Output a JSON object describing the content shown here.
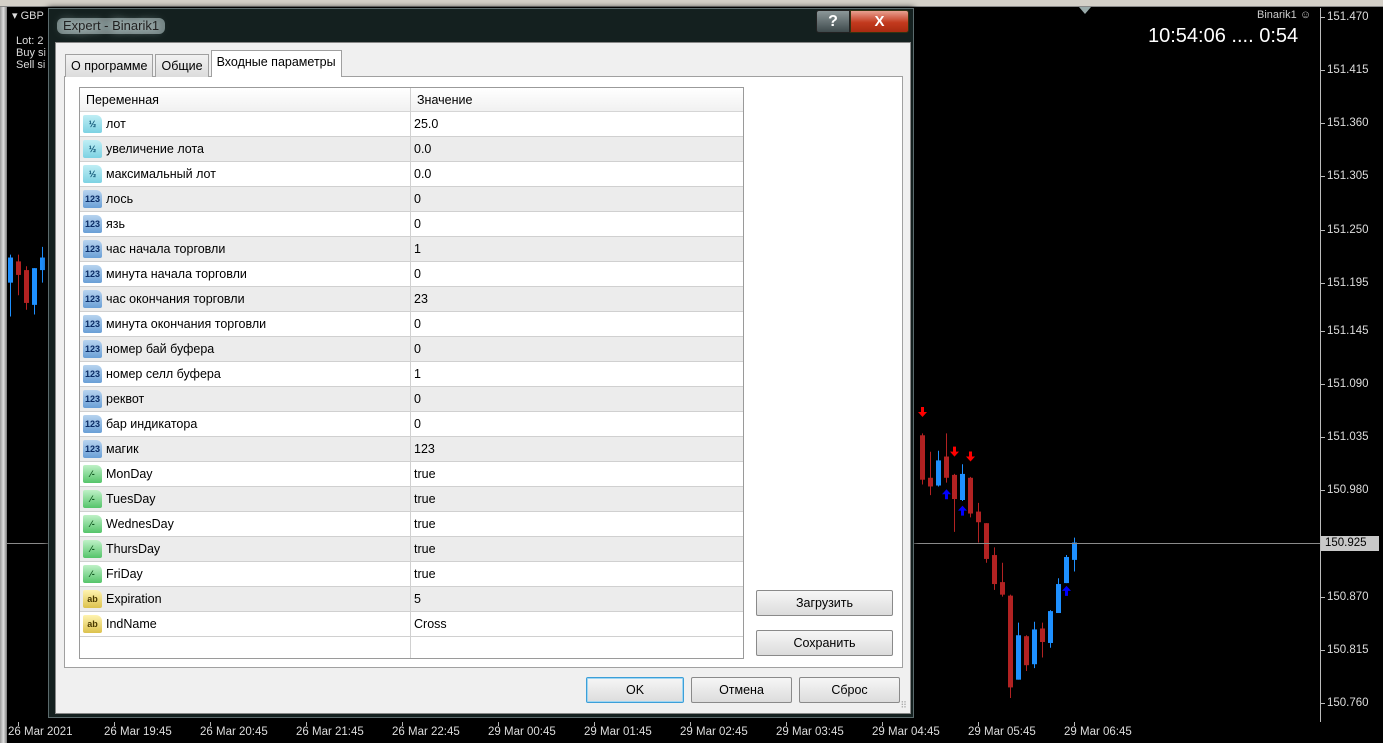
{
  "chart": {
    "symbol": "GBP",
    "info_lines": [
      "Lot: 2",
      "Buy si",
      "Sell si"
    ],
    "clock": "10:54:06 ....  0:54",
    "expert_name": "Binarik1",
    "expert_icon": "smiley-icon",
    "current_price": "150.925",
    "price_labels": [
      "151.470",
      "151.415",
      "151.360",
      "151.305",
      "151.250",
      "151.195",
      "151.145",
      "151.090",
      "151.035",
      "150.980",
      "150.925",
      "150.870",
      "150.815",
      "150.760"
    ],
    "time_labels": [
      "26 Mar 2021",
      "26 Mar 19:45",
      "26 Mar 20:45",
      "26 Mar 21:45",
      "26 Mar 22:45",
      "29 Mar 00:45",
      "29 Mar 01:45",
      "29 Mar 02:45",
      "29 Mar 03:45",
      "29 Mar 04:45",
      "29 Mar 05:45",
      "29 Mar 06:45"
    ],
    "colors": {
      "bull": "#1e90ff",
      "bear": "#b22222",
      "buy_arrow": "#0000ff",
      "sell_arrow": "#ff0000"
    },
    "candles": [
      {
        "bar": 0,
        "o": 151.195,
        "h": 151.224,
        "l": 151.16,
        "c": 151.221
      },
      {
        "bar": 1,
        "o": 151.217,
        "h": 151.224,
        "l": 151.182,
        "c": 151.203
      },
      {
        "bar": 2,
        "o": 151.208,
        "h": 151.212,
        "l": 151.167,
        "c": 151.174
      },
      {
        "bar": 3,
        "o": 151.172,
        "h": 151.21,
        "l": 151.162,
        "c": 151.21
      },
      {
        "bar": 4,
        "o": 151.208,
        "h": 151.232,
        "l": 151.195,
        "c": 151.221
      },
      {
        "bar": 5,
        "o": 151.212,
        "h": 151.253,
        "l": 151.19,
        "c": 151.25
      },
      {
        "bar": 114,
        "o": 151.037,
        "h": 151.039,
        "l": 150.986,
        "c": 150.991
      },
      {
        "bar": 115,
        "o": 150.993,
        "h": 151.02,
        "l": 150.975,
        "c": 150.984
      },
      {
        "bar": 116,
        "o": 150.985,
        "h": 151.021,
        "l": 150.984,
        "c": 151.011
      },
      {
        "bar": 117,
        "o": 151.015,
        "h": 151.039,
        "l": 150.988,
        "c": 150.993
      },
      {
        "bar": 118,
        "o": 150.996,
        "h": 150.997,
        "l": 150.937,
        "c": 150.971
      },
      {
        "bar": 119,
        "o": 150.97,
        "h": 151.007,
        "l": 150.969,
        "c": 150.997
      },
      {
        "bar": 120,
        "o": 150.993,
        "h": 150.994,
        "l": 150.952,
        "c": 150.956
      },
      {
        "bar": 121,
        "o": 150.958,
        "h": 150.967,
        "l": 150.926,
        "c": 150.947
      },
      {
        "bar": 122,
        "o": 150.946,
        "h": 150.946,
        "l": 150.905,
        "c": 150.909
      },
      {
        "bar": 123,
        "o": 150.913,
        "h": 150.921,
        "l": 150.877,
        "c": 150.883
      },
      {
        "bar": 124,
        "o": 150.885,
        "h": 150.905,
        "l": 150.87,
        "c": 150.872
      },
      {
        "bar": 125,
        "o": 150.871,
        "h": 150.872,
        "l": 150.765,
        "c": 150.776
      },
      {
        "bar": 126,
        "o": 150.784,
        "h": 150.843,
        "l": 150.784,
        "c": 150.83
      },
      {
        "bar": 127,
        "o": 150.829,
        "h": 150.83,
        "l": 150.793,
        "c": 150.799
      },
      {
        "bar": 128,
        "o": 150.8,
        "h": 150.844,
        "l": 150.796,
        "c": 150.836
      },
      {
        "bar": 129,
        "o": 150.837,
        "h": 150.843,
        "l": 150.807,
        "c": 150.823
      },
      {
        "bar": 130,
        "o": 150.822,
        "h": 150.856,
        "l": 150.817,
        "c": 150.855
      },
      {
        "bar": 131,
        "o": 150.853,
        "h": 150.889,
        "l": 150.853,
        "c": 150.883
      },
      {
        "bar": 132,
        "o": 150.884,
        "h": 150.913,
        "l": 150.884,
        "c": 150.911
      },
      {
        "bar": 133,
        "o": 150.908,
        "h": 150.931,
        "l": 150.896,
        "c": 150.926
      }
    ],
    "signals": [
      {
        "bar": 114,
        "type": "sell",
        "price": 151.06
      },
      {
        "bar": 118,
        "type": "sell",
        "price": 151.019
      },
      {
        "bar": 120,
        "type": "sell",
        "price": 151.014
      },
      {
        "bar": 117,
        "type": "buy",
        "price": 150.977
      },
      {
        "bar": 119,
        "type": "buy",
        "price": 150.96
      },
      {
        "bar": 132,
        "type": "buy",
        "price": 150.877
      }
    ]
  },
  "dialog": {
    "title": "Expert - Binarik1",
    "help_label": "?",
    "close_label": "X",
    "tabs": [
      {
        "label": "О программе",
        "active": false
      },
      {
        "label": "Общие",
        "active": false
      },
      {
        "label": "Входные параметры",
        "active": true
      }
    ],
    "grid": {
      "headers": {
        "name": "Переменная",
        "value": "Значение"
      },
      "rows": [
        {
          "icon": "fraction",
          "name": "лот",
          "value": "25.0"
        },
        {
          "icon": "fraction",
          "name": "увеличение лота",
          "value": "0.0"
        },
        {
          "icon": "fraction",
          "name": "максимальный лот",
          "value": "0.0"
        },
        {
          "icon": "int",
          "name": "лось",
          "value": "0"
        },
        {
          "icon": "int",
          "name": "язь",
          "value": "0"
        },
        {
          "icon": "int",
          "name": "час начала торговли",
          "value": "1"
        },
        {
          "icon": "int",
          "name": "минута начала торговли",
          "value": "0"
        },
        {
          "icon": "int",
          "name": "час окончания торговли",
          "value": "23"
        },
        {
          "icon": "int",
          "name": "минута окончания торговли",
          "value": "0"
        },
        {
          "icon": "int",
          "name": "номер бай буфера",
          "value": "0"
        },
        {
          "icon": "int",
          "name": "номер селл буфера",
          "value": "1"
        },
        {
          "icon": "int",
          "name": "реквот",
          "value": "0"
        },
        {
          "icon": "int",
          "name": "бар индикатора",
          "value": "0"
        },
        {
          "icon": "int",
          "name": "магик",
          "value": "123"
        },
        {
          "icon": "bool",
          "name": "MonDay",
          "value": "true"
        },
        {
          "icon": "bool",
          "name": "TuesDay",
          "value": "true"
        },
        {
          "icon": "bool",
          "name": "WednesDay",
          "value": "true"
        },
        {
          "icon": "bool",
          "name": "ThursDay",
          "value": "true"
        },
        {
          "icon": "bool",
          "name": "FriDay",
          "value": "true"
        },
        {
          "icon": "string",
          "name": "Expiration",
          "value": "5"
        },
        {
          "icon": "string",
          "name": "IndName",
          "value": "Cross"
        }
      ]
    },
    "icon_glyphs": {
      "fraction": "½",
      "int": "123",
      "bool": "⁄-",
      "string": "ab"
    },
    "load_label": "Загрузить",
    "save_label": "Сохранить",
    "ok_label": "OK",
    "cancel_label": "Отмена",
    "reset_label": "Сброс"
  }
}
